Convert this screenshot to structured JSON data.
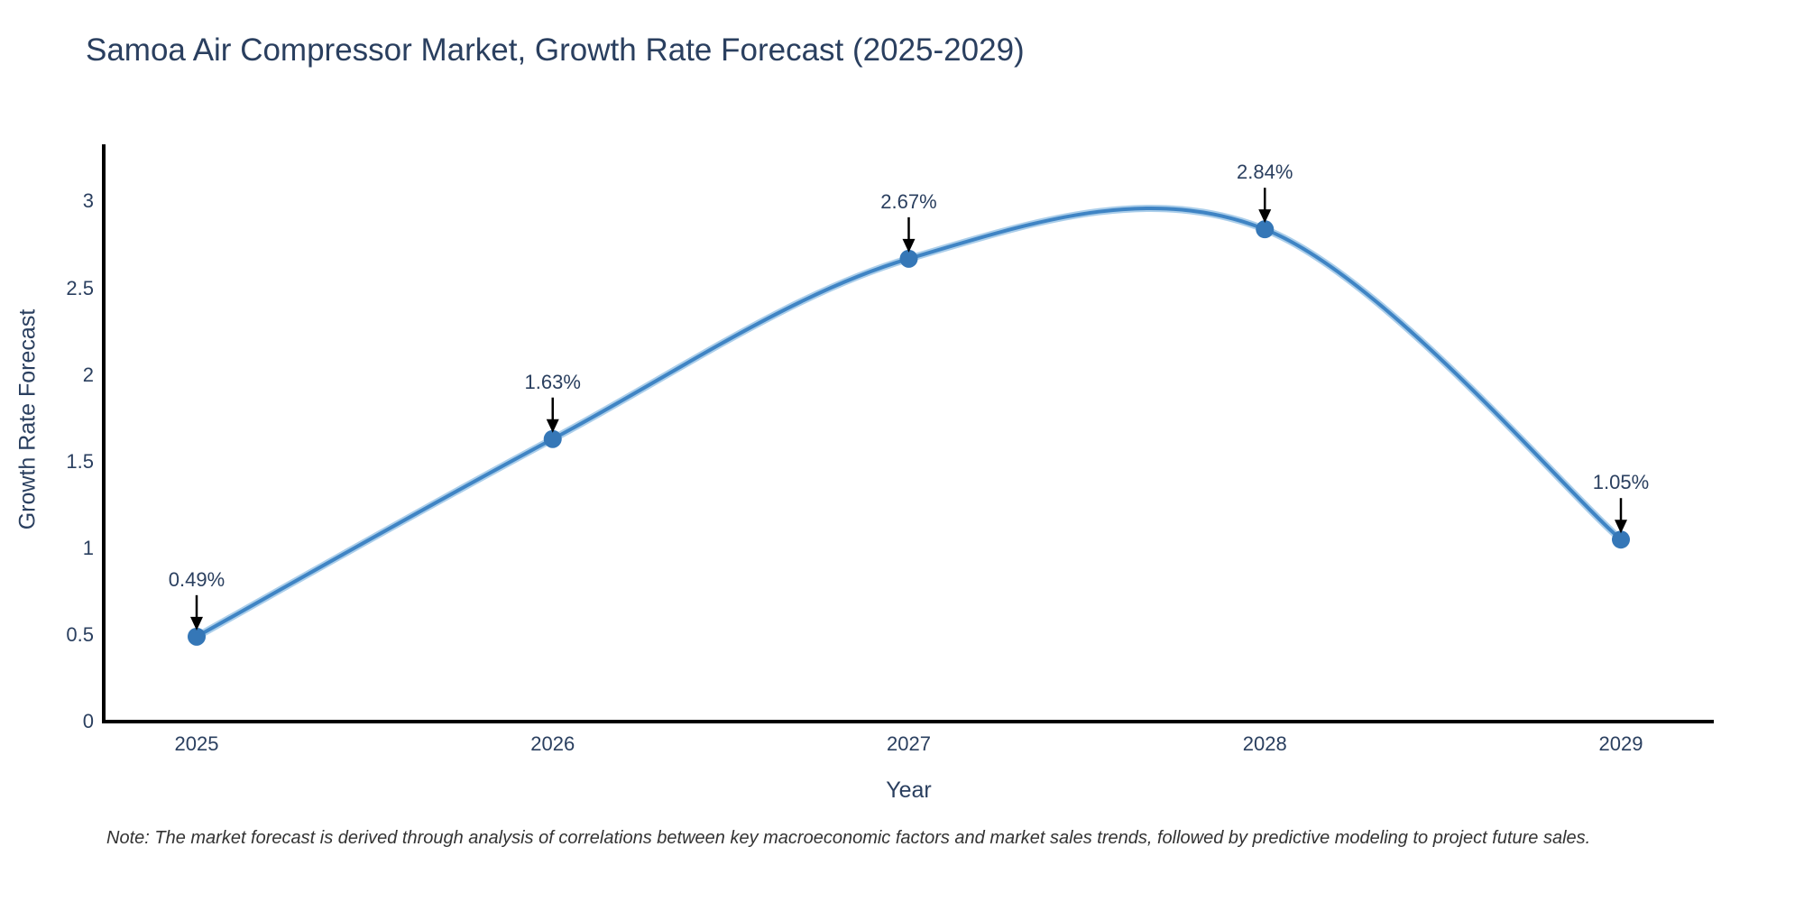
{
  "chart_data": {
    "type": "line",
    "title": "Samoa Air Compressor Market, Growth Rate Forecast (2025-2029)",
    "categories": [
      "2025",
      "2026",
      "2027",
      "2028",
      "2029"
    ],
    "series": [
      {
        "name": "Growth Rate Forecast",
        "values": [
          0.49,
          1.63,
          2.67,
          2.84,
          1.05
        ],
        "point_labels": [
          "0.49%",
          "1.63%",
          "2.67%",
          "2.84%",
          "1.05%"
        ]
      }
    ],
    "xlabel": "Year",
    "ylabel": "Growth Rate Forecast",
    "yticks": [
      "0",
      "0.5",
      "1",
      "1.5",
      "2",
      "2.5",
      "3"
    ],
    "ylim": [
      0,
      3.33
    ],
    "grid": false,
    "legend_position": "none",
    "line_shape": "spline",
    "annotations_have_arrows": true,
    "note": "Note: The market forecast is derived through analysis of correlations between key macroeconomic factors and market sales trends, followed by predictive modeling to project future sales.",
    "colors": {
      "line": "#3f84c4",
      "line_halo": "#abceea",
      "marker": "#3577b7",
      "axis": "#000000",
      "text": "#2a3f5f",
      "annotation_text": "#2a3f5f",
      "arrow": "#000000",
      "note_text": "#333333",
      "background": "#ffffff"
    }
  }
}
